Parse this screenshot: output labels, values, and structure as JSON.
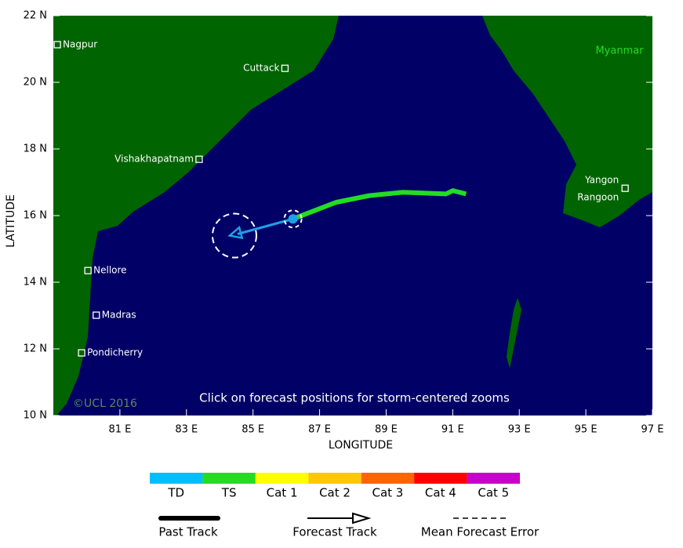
{
  "map": {
    "type": "map",
    "xlabel": "LONGITUDE",
    "ylabel": "LATITUDE",
    "xlim": [
      79,
      97
    ],
    "ylim": [
      10,
      22
    ],
    "xticks": [
      {
        "value": 81,
        "label": "81 E"
      },
      {
        "value": 83,
        "label": "83 E"
      },
      {
        "value": 85,
        "label": "85 E"
      },
      {
        "value": 87,
        "label": "87 E"
      },
      {
        "value": 89,
        "label": "89 E"
      },
      {
        "value": 91,
        "label": "91 E"
      },
      {
        "value": 93,
        "label": "93 E"
      },
      {
        "value": 95,
        "label": "95 E"
      },
      {
        "value": 97,
        "label": "97 E"
      }
    ],
    "yticks": [
      {
        "value": 10,
        "label": "10 N"
      },
      {
        "value": 12,
        "label": "12 N"
      },
      {
        "value": 14,
        "label": "14 N"
      },
      {
        "value": 16,
        "label": "16 N"
      },
      {
        "value": 18,
        "label": "18 N"
      },
      {
        "value": 20,
        "label": "20 N"
      },
      {
        "value": 22,
        "label": "22 N"
      }
    ],
    "cities": [
      {
        "name": "Nagpur",
        "lon": 79.12,
        "lat": 21.13
      },
      {
        "name": "Cuttack",
        "lon": 85.96,
        "lat": 20.42
      },
      {
        "name": "Vishakhapatnam",
        "lon": 83.38,
        "lat": 17.69
      },
      {
        "name": "Nellore",
        "lon": 80.04,
        "lat": 14.35
      },
      {
        "name": "Madras",
        "lon": 80.29,
        "lat": 13.01
      },
      {
        "name": "Pondicherry",
        "lon": 79.85,
        "lat": 11.88
      },
      {
        "name": "Yangon",
        "alt_name": "Rangoon",
        "lon": 96.18,
        "lat": 16.82
      }
    ],
    "country": "Myanmar",
    "past_track": {
      "name": "Past Track",
      "color": "#22dd22",
      "lon": [
        86.2,
        87.5,
        88.5,
        89.5,
        90.8,
        91.0,
        91.4
      ],
      "lat": [
        15.9,
        16.4,
        16.6,
        16.7,
        16.65,
        16.75,
        16.65
      ]
    },
    "forecast_track": {
      "name": "Forecast Track",
      "color": "#1ea0e6",
      "lon": [
        86.2,
        84.3
      ],
      "lat": [
        15.9,
        15.4
      ]
    },
    "forecast_error_radius": 0.66,
    "error_label": "Mean Forecast Error",
    "note": "Click on forecast positions for storm-centered zooms",
    "copyright": "©UCL 2016"
  },
  "legend": {
    "categories": [
      {
        "name": "TD",
        "color": "#00bfff"
      },
      {
        "name": "TS",
        "color": "#22dd22"
      },
      {
        "name": "Cat 1",
        "color": "#ffff00"
      },
      {
        "name": "Cat 2",
        "color": "#ffc800"
      },
      {
        "name": "Cat 3",
        "color": "#ff6400"
      },
      {
        "name": "Cat 4",
        "color": "#ff0000"
      },
      {
        "name": "Cat 5",
        "color": "#c800c8"
      }
    ]
  }
}
